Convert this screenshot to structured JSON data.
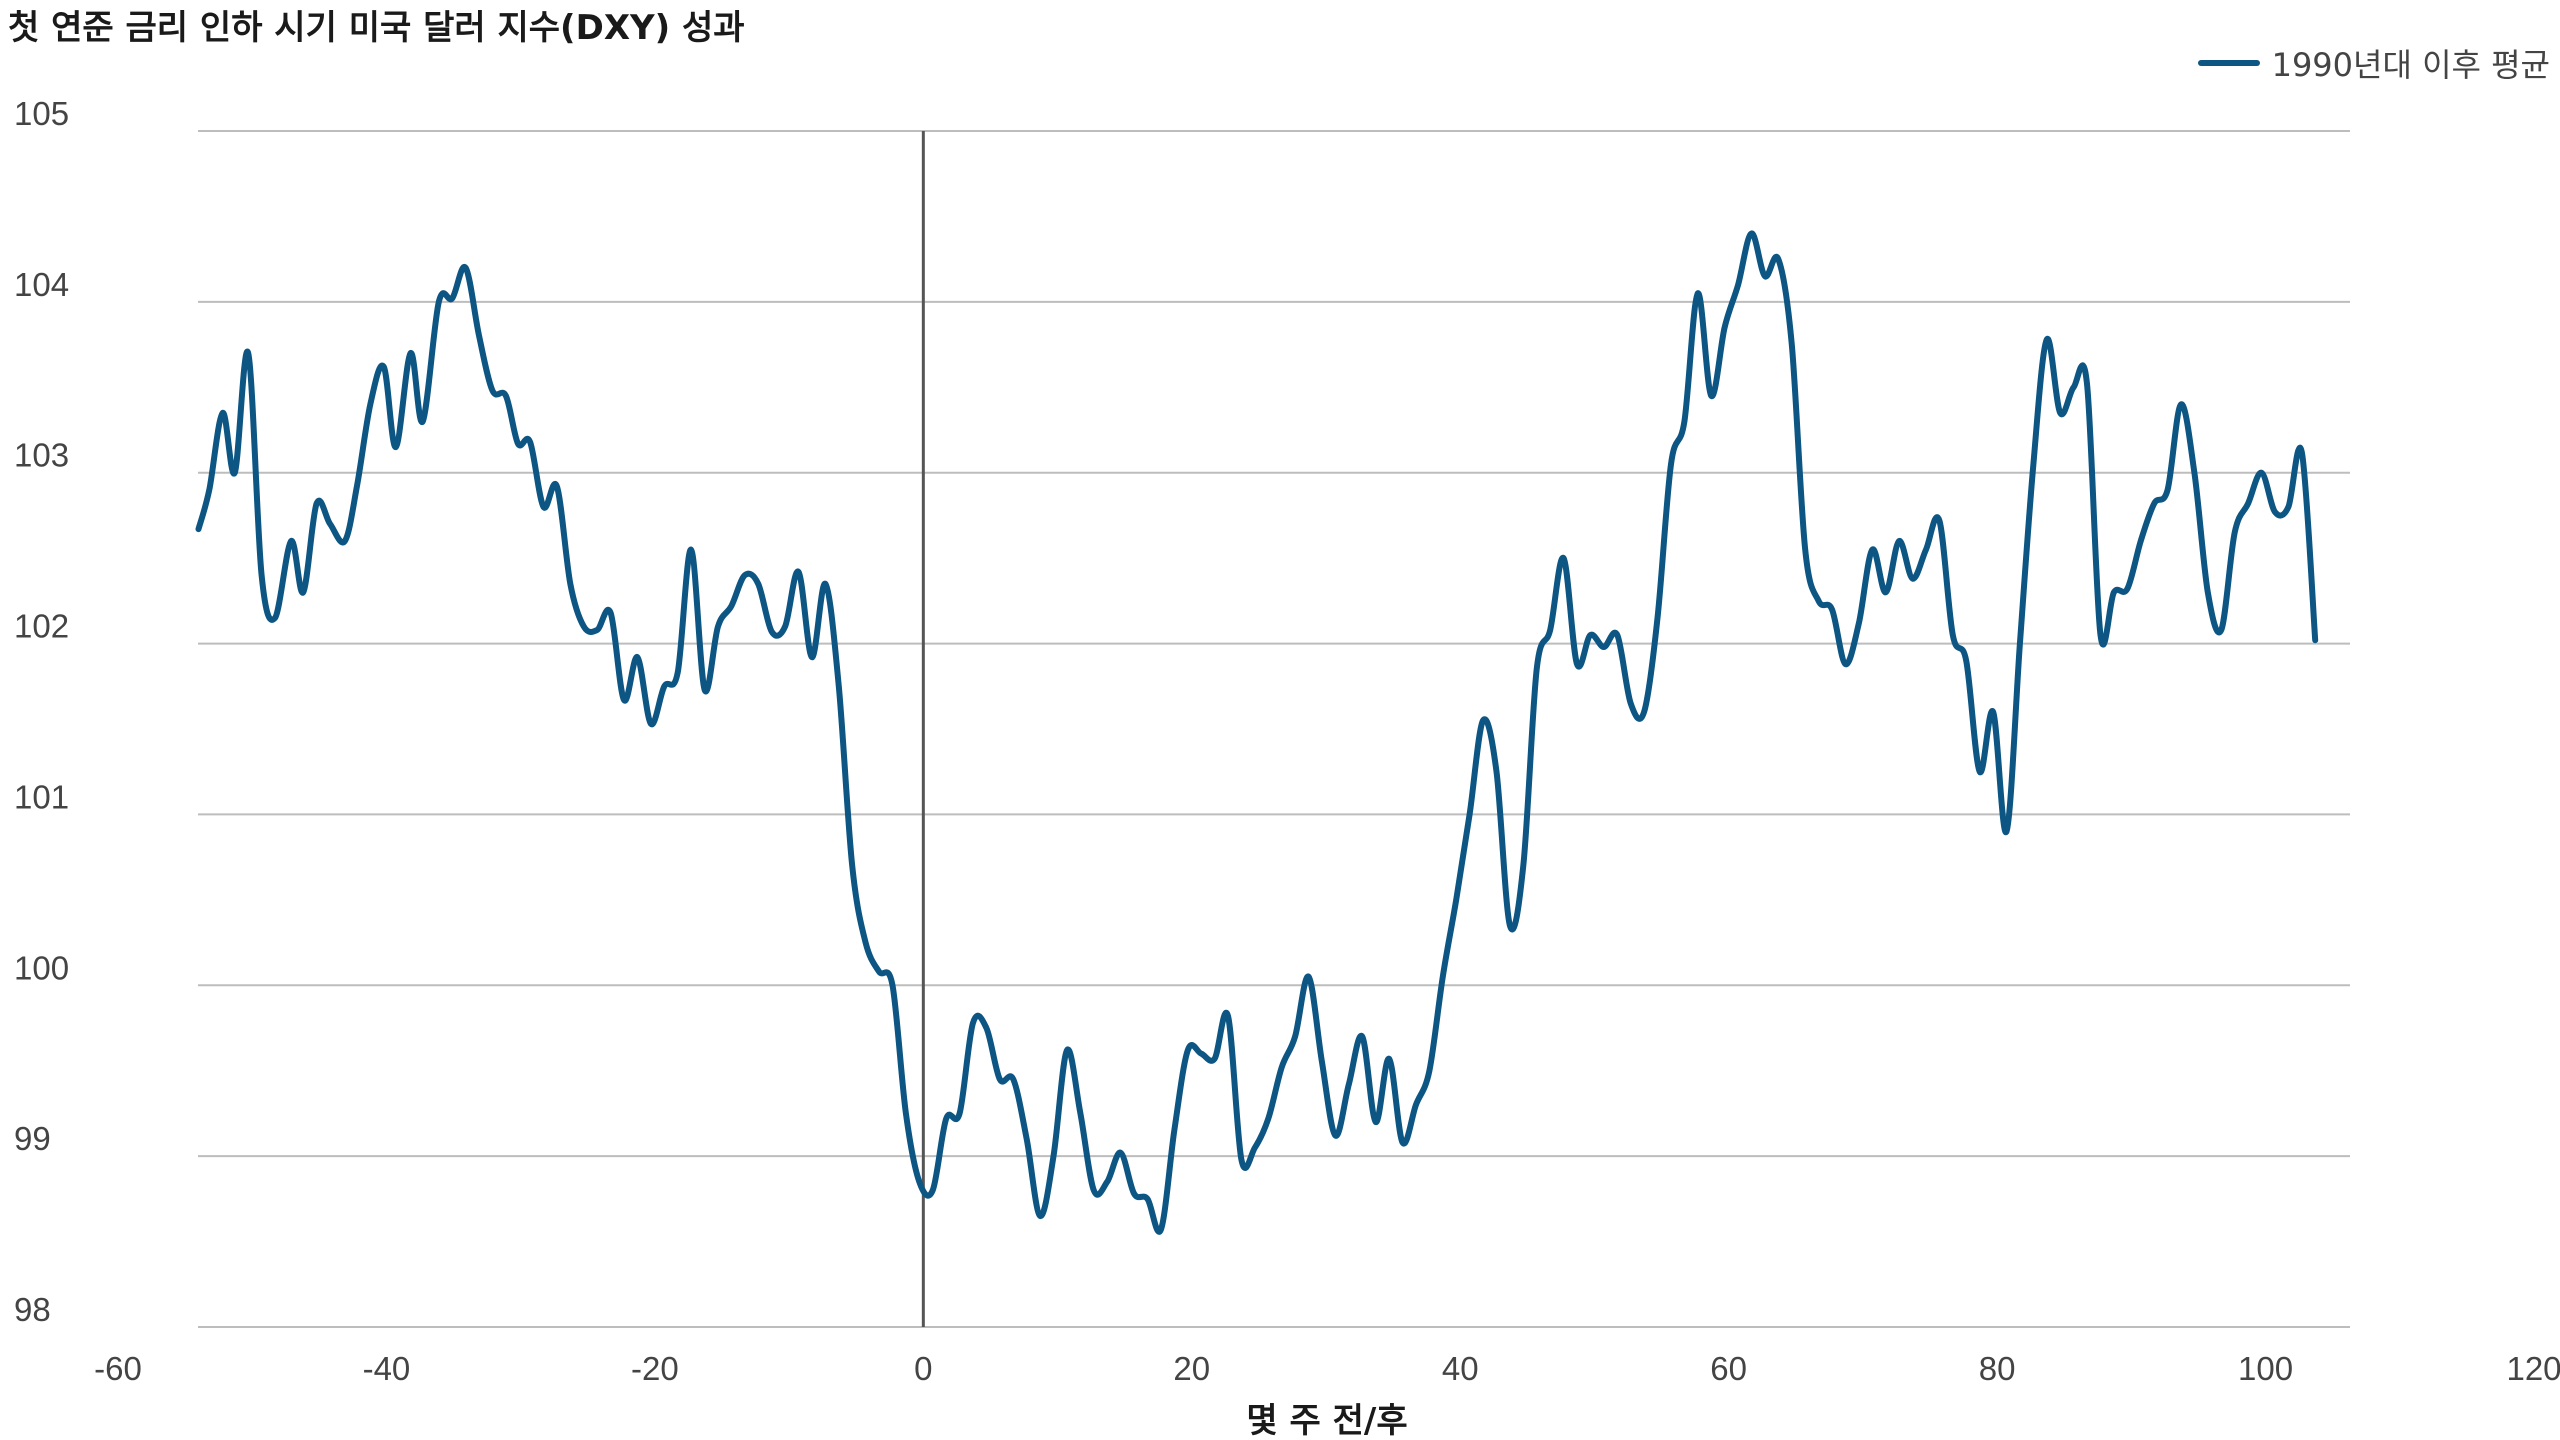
{
  "chart_data": {
    "type": "line",
    "title": "첫 연준 금리 인하 시기 미국 달러 지수(DXY) 성과",
    "xlabel": "몇 주 전/후",
    "ylabel": "",
    "xlim": [
      -60,
      120
    ],
    "ylim": [
      98,
      105
    ],
    "x_ticks": [
      "-60",
      "-40",
      "-20",
      "0",
      "20",
      "40",
      "60",
      "80",
      "100",
      "120"
    ],
    "y_ticks": [
      "98",
      "99",
      "100",
      "101",
      "102",
      "103",
      "104",
      "105"
    ],
    "grid": "horizontal",
    "legend_position": "top-right",
    "reference_line_x": 0,
    "series": [
      {
        "name": "1990년대 이후 평균",
        "color": "#0d5683",
        "points": [
          [
            -54,
            102.67
          ],
          [
            -53.2,
            102.9
          ],
          [
            -52.2,
            103.35
          ],
          [
            -51.3,
            103.0
          ],
          [
            -50.3,
            103.7
          ],
          [
            -49.3,
            102.4
          ],
          [
            -48.3,
            102.15
          ],
          [
            -47.1,
            102.6
          ],
          [
            -46.2,
            102.3
          ],
          [
            -45.2,
            102.82
          ],
          [
            -44.2,
            102.7
          ],
          [
            -43.1,
            102.6
          ],
          [
            -42.2,
            102.92
          ],
          [
            -41.2,
            103.4
          ],
          [
            -40.2,
            103.62
          ],
          [
            -39.3,
            103.15
          ],
          [
            -38.2,
            103.7
          ],
          [
            -37.3,
            103.3
          ],
          [
            -36.1,
            104.0
          ],
          [
            -35.1,
            104.02
          ],
          [
            -34.1,
            104.2
          ],
          [
            -33.1,
            103.8
          ],
          [
            -32.1,
            103.48
          ],
          [
            -31.1,
            103.45
          ],
          [
            -30.2,
            103.17
          ],
          [
            -29.3,
            103.18
          ],
          [
            -28.3,
            102.8
          ],
          [
            -27.3,
            102.92
          ],
          [
            -26.3,
            102.35
          ],
          [
            -25.3,
            102.1
          ],
          [
            -24.3,
            102.08
          ],
          [
            -23.3,
            102.18
          ],
          [
            -22.3,
            101.67
          ],
          [
            -21.3,
            101.92
          ],
          [
            -20.3,
            101.53
          ],
          [
            -19.3,
            101.75
          ],
          [
            -18.3,
            101.83
          ],
          [
            -17.3,
            102.55
          ],
          [
            -16.3,
            101.73
          ],
          [
            -15.3,
            102.1
          ],
          [
            -14.3,
            102.22
          ],
          [
            -13.3,
            102.4
          ],
          [
            -12.3,
            102.35
          ],
          [
            -11.3,
            102.07
          ],
          [
            -10.3,
            102.1
          ],
          [
            -9.3,
            102.42
          ],
          [
            -8.3,
            101.92
          ],
          [
            -7.3,
            102.35
          ],
          [
            -6.3,
            101.75
          ],
          [
            -5.3,
            100.7
          ],
          [
            -4.3,
            100.25
          ],
          [
            -3.3,
            100.08
          ],
          [
            -2.3,
            100.0
          ],
          [
            -1.3,
            99.25
          ],
          [
            -0.3,
            98.85
          ],
          [
            0.7,
            98.8
          ],
          [
            1.7,
            99.22
          ],
          [
            2.7,
            99.25
          ],
          [
            3.7,
            99.78
          ],
          [
            4.7,
            99.75
          ],
          [
            5.7,
            99.45
          ],
          [
            6.7,
            99.45
          ],
          [
            7.7,
            99.1
          ],
          [
            8.7,
            98.65
          ],
          [
            9.7,
            99.0
          ],
          [
            10.7,
            99.62
          ],
          [
            11.7,
            99.25
          ],
          [
            12.7,
            98.8
          ],
          [
            13.7,
            98.85
          ],
          [
            14.7,
            99.02
          ],
          [
            15.7,
            98.78
          ],
          [
            16.7,
            98.75
          ],
          [
            17.7,
            98.57
          ],
          [
            18.7,
            99.15
          ],
          [
            19.7,
            99.62
          ],
          [
            20.7,
            99.6
          ],
          [
            21.7,
            99.57
          ],
          [
            22.7,
            99.82
          ],
          [
            23.7,
            98.98
          ],
          [
            24.7,
            99.05
          ],
          [
            25.7,
            99.22
          ],
          [
            26.7,
            99.52
          ],
          [
            27.7,
            99.7
          ],
          [
            28.7,
            100.05
          ],
          [
            29.7,
            99.55
          ],
          [
            30.7,
            99.12
          ],
          [
            31.7,
            99.42
          ],
          [
            32.7,
            99.7
          ],
          [
            33.7,
            99.2
          ],
          [
            34.7,
            99.57
          ],
          [
            35.7,
            99.08
          ],
          [
            36.7,
            99.3
          ],
          [
            37.7,
            99.5
          ],
          [
            38.7,
            100.05
          ],
          [
            39.7,
            100.5
          ],
          [
            40.7,
            101.0
          ],
          [
            41.7,
            101.55
          ],
          [
            42.7,
            101.25
          ],
          [
            43.7,
            100.35
          ],
          [
            44.7,
            100.7
          ],
          [
            45.7,
            101.85
          ],
          [
            46.7,
            102.08
          ],
          [
            47.7,
            102.5
          ],
          [
            48.7,
            101.88
          ],
          [
            49.7,
            102.05
          ],
          [
            50.7,
            101.98
          ],
          [
            51.7,
            102.05
          ],
          [
            52.7,
            101.65
          ],
          [
            53.7,
            101.6
          ],
          [
            54.7,
            102.15
          ],
          [
            55.7,
            103.05
          ],
          [
            56.7,
            103.3
          ],
          [
            57.7,
            104.05
          ],
          [
            58.7,
            103.45
          ],
          [
            59.7,
            103.85
          ],
          [
            60.7,
            104.1
          ],
          [
            61.7,
            104.4
          ],
          [
            62.7,
            104.15
          ],
          [
            63.7,
            104.25
          ],
          [
            64.7,
            103.75
          ],
          [
            65.7,
            102.55
          ],
          [
            66.7,
            102.25
          ],
          [
            67.7,
            102.2
          ],
          [
            68.7,
            101.88
          ],
          [
            69.7,
            102.12
          ],
          [
            70.7,
            102.55
          ],
          [
            71.7,
            102.3
          ],
          [
            72.7,
            102.6
          ],
          [
            73.7,
            102.38
          ],
          [
            74.7,
            102.55
          ],
          [
            75.7,
            102.72
          ],
          [
            76.7,
            102.05
          ],
          [
            77.7,
            101.9
          ],
          [
            78.7,
            101.25
          ],
          [
            79.7,
            101.6
          ],
          [
            80.7,
            100.9
          ],
          [
            81.7,
            102.0
          ],
          [
            82.7,
            103.05
          ],
          [
            83.7,
            103.78
          ],
          [
            84.7,
            103.35
          ],
          [
            85.7,
            103.5
          ],
          [
            86.7,
            103.52
          ],
          [
            87.7,
            102.05
          ],
          [
            88.7,
            102.3
          ],
          [
            89.7,
            102.32
          ],
          [
            90.7,
            102.6
          ],
          [
            91.7,
            102.82
          ],
          [
            92.7,
            102.9
          ],
          [
            93.7,
            103.4
          ],
          [
            94.7,
            103.0
          ],
          [
            95.7,
            102.3
          ],
          [
            96.7,
            102.08
          ],
          [
            97.7,
            102.65
          ],
          [
            98.7,
            102.82
          ],
          [
            99.7,
            103.0
          ],
          [
            100.7,
            102.77
          ],
          [
            101.7,
            102.8
          ],
          [
            102.7,
            103.12
          ],
          [
            103.7,
            102.02
          ]
        ]
      }
    ]
  }
}
